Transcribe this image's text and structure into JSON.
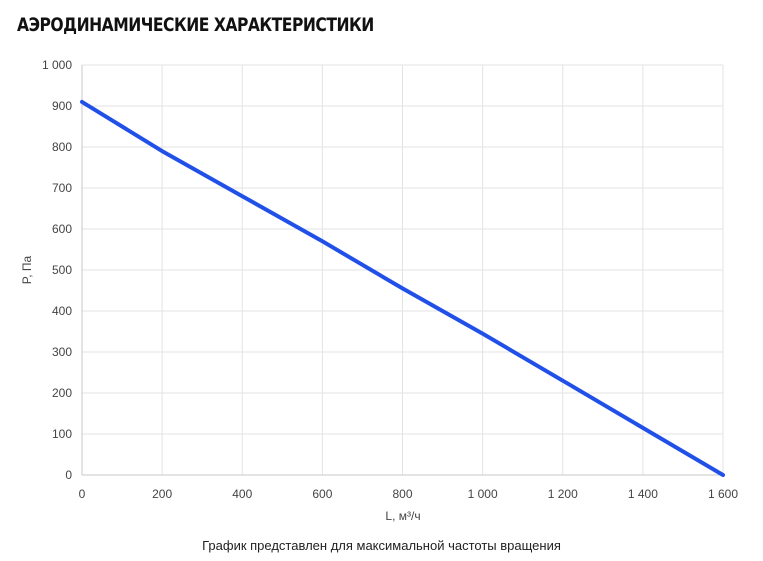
{
  "page": {
    "title": "АЭРОДИНАМИЧЕСКИЕ ХАРАКТЕРИСТИКИ",
    "footnote": "График представлен для максимальной частоты вращения"
  },
  "colors": {
    "series": "#2150e8",
    "grid": "#e3e3e3",
    "axis": "#c8c8c8"
  },
  "chart_data": {
    "type": "line",
    "title": "",
    "xlabel": "L, м³/ч",
    "ylabel": "P, Па",
    "xlim": [
      0,
      1600
    ],
    "ylim": [
      0,
      1000
    ],
    "grid": true,
    "x_ticks": [
      0,
      200,
      400,
      600,
      800,
      1000,
      1200,
      1400,
      1600
    ],
    "x_tick_labels": [
      "0",
      "200",
      "400",
      "600",
      "800",
      "1 000",
      "1 200",
      "1 400",
      "1 600"
    ],
    "y_ticks": [
      0,
      100,
      200,
      300,
      400,
      500,
      600,
      700,
      800,
      900,
      1000
    ],
    "y_tick_labels": [
      "0",
      "100",
      "200",
      "300",
      "400",
      "500",
      "600",
      "700",
      "800",
      "900",
      "1 000"
    ],
    "series": [
      {
        "x": [
          0,
          200,
          400,
          600,
          800,
          1000,
          1200,
          1400,
          1600
        ],
        "y": [
          910,
          790,
          680,
          570,
          455,
          345,
          230,
          115,
          0
        ]
      }
    ]
  }
}
